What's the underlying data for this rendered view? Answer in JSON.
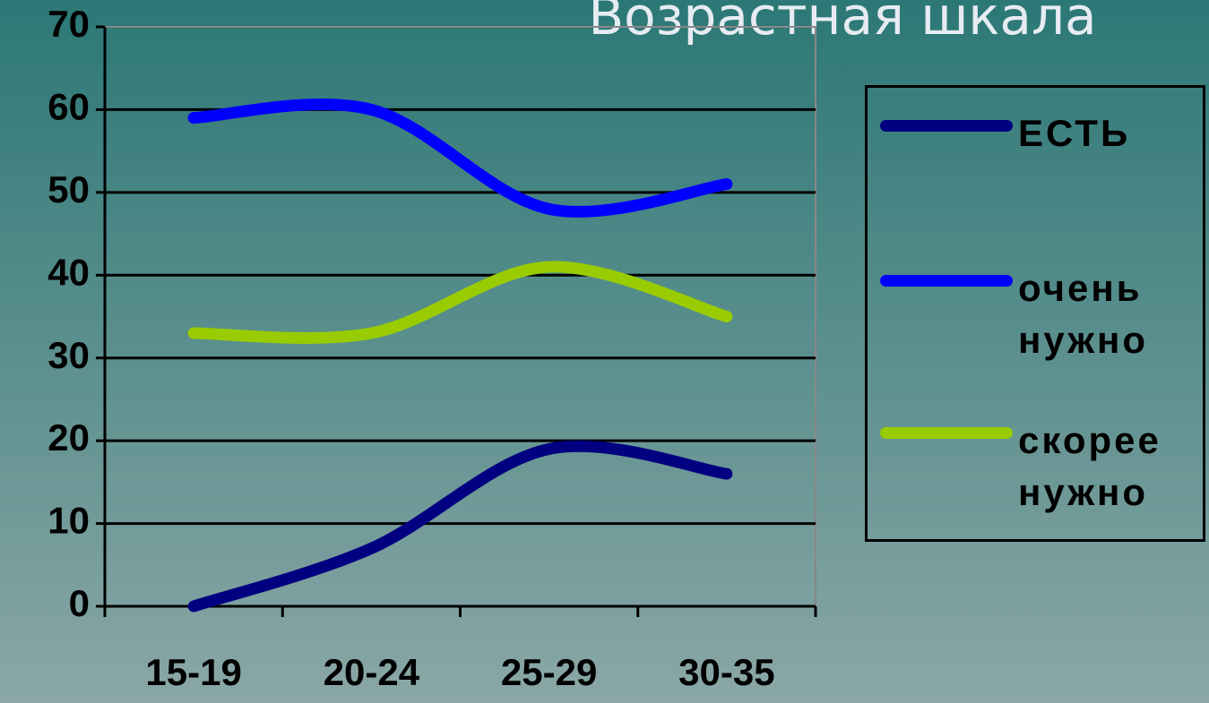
{
  "chart_data": {
    "type": "line",
    "title": "Возрастная шкала",
    "categories": [
      "15-19",
      "20-24",
      "25-29",
      "30-35"
    ],
    "series": [
      {
        "name": "ЕСТЬ",
        "color": "#000080",
        "values": [
          0,
          7,
          19,
          16
        ]
      },
      {
        "name": "очень нужно",
        "color": "#0000ff",
        "values": [
          59,
          60,
          48,
          51
        ]
      },
      {
        "name": "скорее нужно",
        "color": "#99cc00",
        "values": [
          33,
          33,
          41,
          35
        ]
      }
    ],
    "ylim": [
      0,
      70
    ],
    "yticks": [
      0,
      10,
      20,
      30,
      40,
      50,
      60,
      70
    ],
    "grid": true,
    "smooth": true,
    "legend": "right"
  }
}
